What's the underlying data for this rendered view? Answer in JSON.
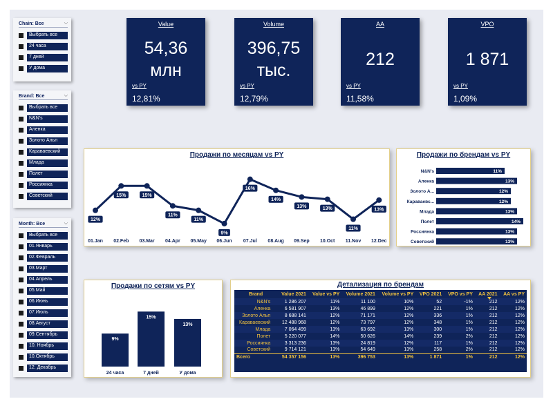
{
  "slicers": {
    "chain": {
      "title": "Chain: Все",
      "items": [
        "Выбрать все",
        "24 часа",
        "7 дней",
        "У дома"
      ]
    },
    "brand": {
      "title": "Brand: Все",
      "items": [
        "Выбрать все",
        "N&N's",
        "Аленка",
        "Золото Альп",
        "Караваевский",
        "Млада",
        "Полет",
        "Россиянка",
        "Советский"
      ]
    },
    "month": {
      "title": "Month: Все",
      "items": [
        "Выбрать все",
        "01.Январь",
        "02.Февраль",
        "03.Март",
        "04.Апрель",
        "05.Май",
        "06.Июнь",
        "07.Июль",
        "08.Август",
        "09.Сентябрь",
        "10. Ноябрь",
        "10.Октябрь",
        "12. Декабрь"
      ]
    }
  },
  "kpis": [
    {
      "title": "Value",
      "value": "54,36\nмлн",
      "py_label": "vs PY",
      "py": "12,81%"
    },
    {
      "title": "Volume",
      "value": "396,75\nтыс.",
      "py_label": "vs PY",
      "py": "12,79%"
    },
    {
      "title": "AA",
      "value": "212",
      "py_label": "vs PY",
      "py": "11,58%"
    },
    {
      "title": "VPO",
      "value": "1 871",
      "py_label": "vs PY",
      "py": "1,09%"
    }
  ],
  "colors": {
    "navy": "#0f2459",
    "gold": "#f2c23e",
    "panel_border": "#e3cf8a",
    "canvas": "#e9ebf2"
  },
  "icons": {
    "slicer_toggle": "chevron-down-icon",
    "checkbox": "checkbox-icon",
    "sort": "sort-desc-icon"
  },
  "chart_data": [
    {
      "type": "line",
      "title": "Продажи по месяцам vs PY",
      "categories": [
        "01.Jan",
        "02.Feb",
        "03.Mar",
        "04.Apr",
        "05.May",
        "06.Jun",
        "07.Jul",
        "08.Aug",
        "09.Sep",
        "10.Oct",
        "11.Nov",
        "12.Dec"
      ],
      "values": [
        12,
        15,
        15,
        11,
        11,
        9,
        16,
        14,
        13,
        13,
        11,
        13
      ],
      "labels": [
        "12%",
        "15%",
        "15%",
        "11%",
        "11%",
        "9%",
        "16%",
        "14%",
        "13%",
        "13%",
        "11%",
        "13%"
      ],
      "series_values": [
        38.5,
        44,
        44,
        39.5,
        38.5,
        35.5,
        45.5,
        43,
        41.5,
        41,
        36.5,
        40.8
      ],
      "ylim": [
        33,
        47
      ]
    },
    {
      "type": "bar",
      "orientation": "horizontal",
      "title": "Продажи по брендам vs PY",
      "categories": [
        "N&N's",
        "Аленка",
        "Золото А...",
        "Караваевс...",
        "Млада",
        "Полет",
        "Россиянка",
        "Советский"
      ],
      "values": [
        11,
        13,
        12,
        12,
        13,
        14,
        13,
        13
      ],
      "labels": [
        "11%",
        "13%",
        "12%",
        "12%",
        "13%",
        "14%",
        "13%",
        "13%"
      ],
      "xlim": [
        0,
        14
      ]
    },
    {
      "type": "bar",
      "title": "Продажи по сетям vs PY",
      "categories": [
        "24 часа",
        "7 дней",
        "У дома"
      ],
      "values": [
        9,
        15,
        13
      ],
      "labels": [
        "9%",
        "15%",
        "13%"
      ],
      "ylim": [
        0,
        16
      ]
    }
  ],
  "detail": {
    "title": "Детализация по брендам",
    "columns": [
      "Brand",
      "Value 2021",
      "Value vs PY",
      "Volume 2021",
      "Volume vs PY",
      "VPO 2021",
      "VPO vs PY",
      "AA 2021",
      "AA vs PY"
    ],
    "rows": [
      [
        "N&N's",
        "1 286 207",
        "11%",
        "11 100",
        "10%",
        "52",
        "-1%",
        "212",
        "12%"
      ],
      [
        "Аленка",
        "6 581 907",
        "13%",
        "46 899",
        "12%",
        "221",
        "1%",
        "212",
        "12%"
      ],
      [
        "Золото Альп",
        "8 688 141",
        "12%",
        "71 171",
        "12%",
        "336",
        "1%",
        "212",
        "12%"
      ],
      [
        "Караваевский",
        "12 488 968",
        "12%",
        "73 797",
        "12%",
        "348",
        "1%",
        "212",
        "12%"
      ],
      [
        "Млада",
        "7 064 499",
        "13%",
        "63 692",
        "13%",
        "300",
        "1%",
        "212",
        "12%"
      ],
      [
        "Полет",
        "5 220 077",
        "14%",
        "50 626",
        "14%",
        "239",
        "2%",
        "212",
        "12%"
      ],
      [
        "Россиянка",
        "3 313 236",
        "13%",
        "24 819",
        "12%",
        "117",
        "1%",
        "212",
        "12%"
      ],
      [
        "Советский",
        "9 714 121",
        "13%",
        "54 649",
        "13%",
        "258",
        "2%",
        "212",
        "12%"
      ]
    ],
    "total": [
      "Всего",
      "54 357 156",
      "13%",
      "396 753",
      "13%",
      "1 871",
      "1%",
      "212",
      "12%"
    ]
  }
}
